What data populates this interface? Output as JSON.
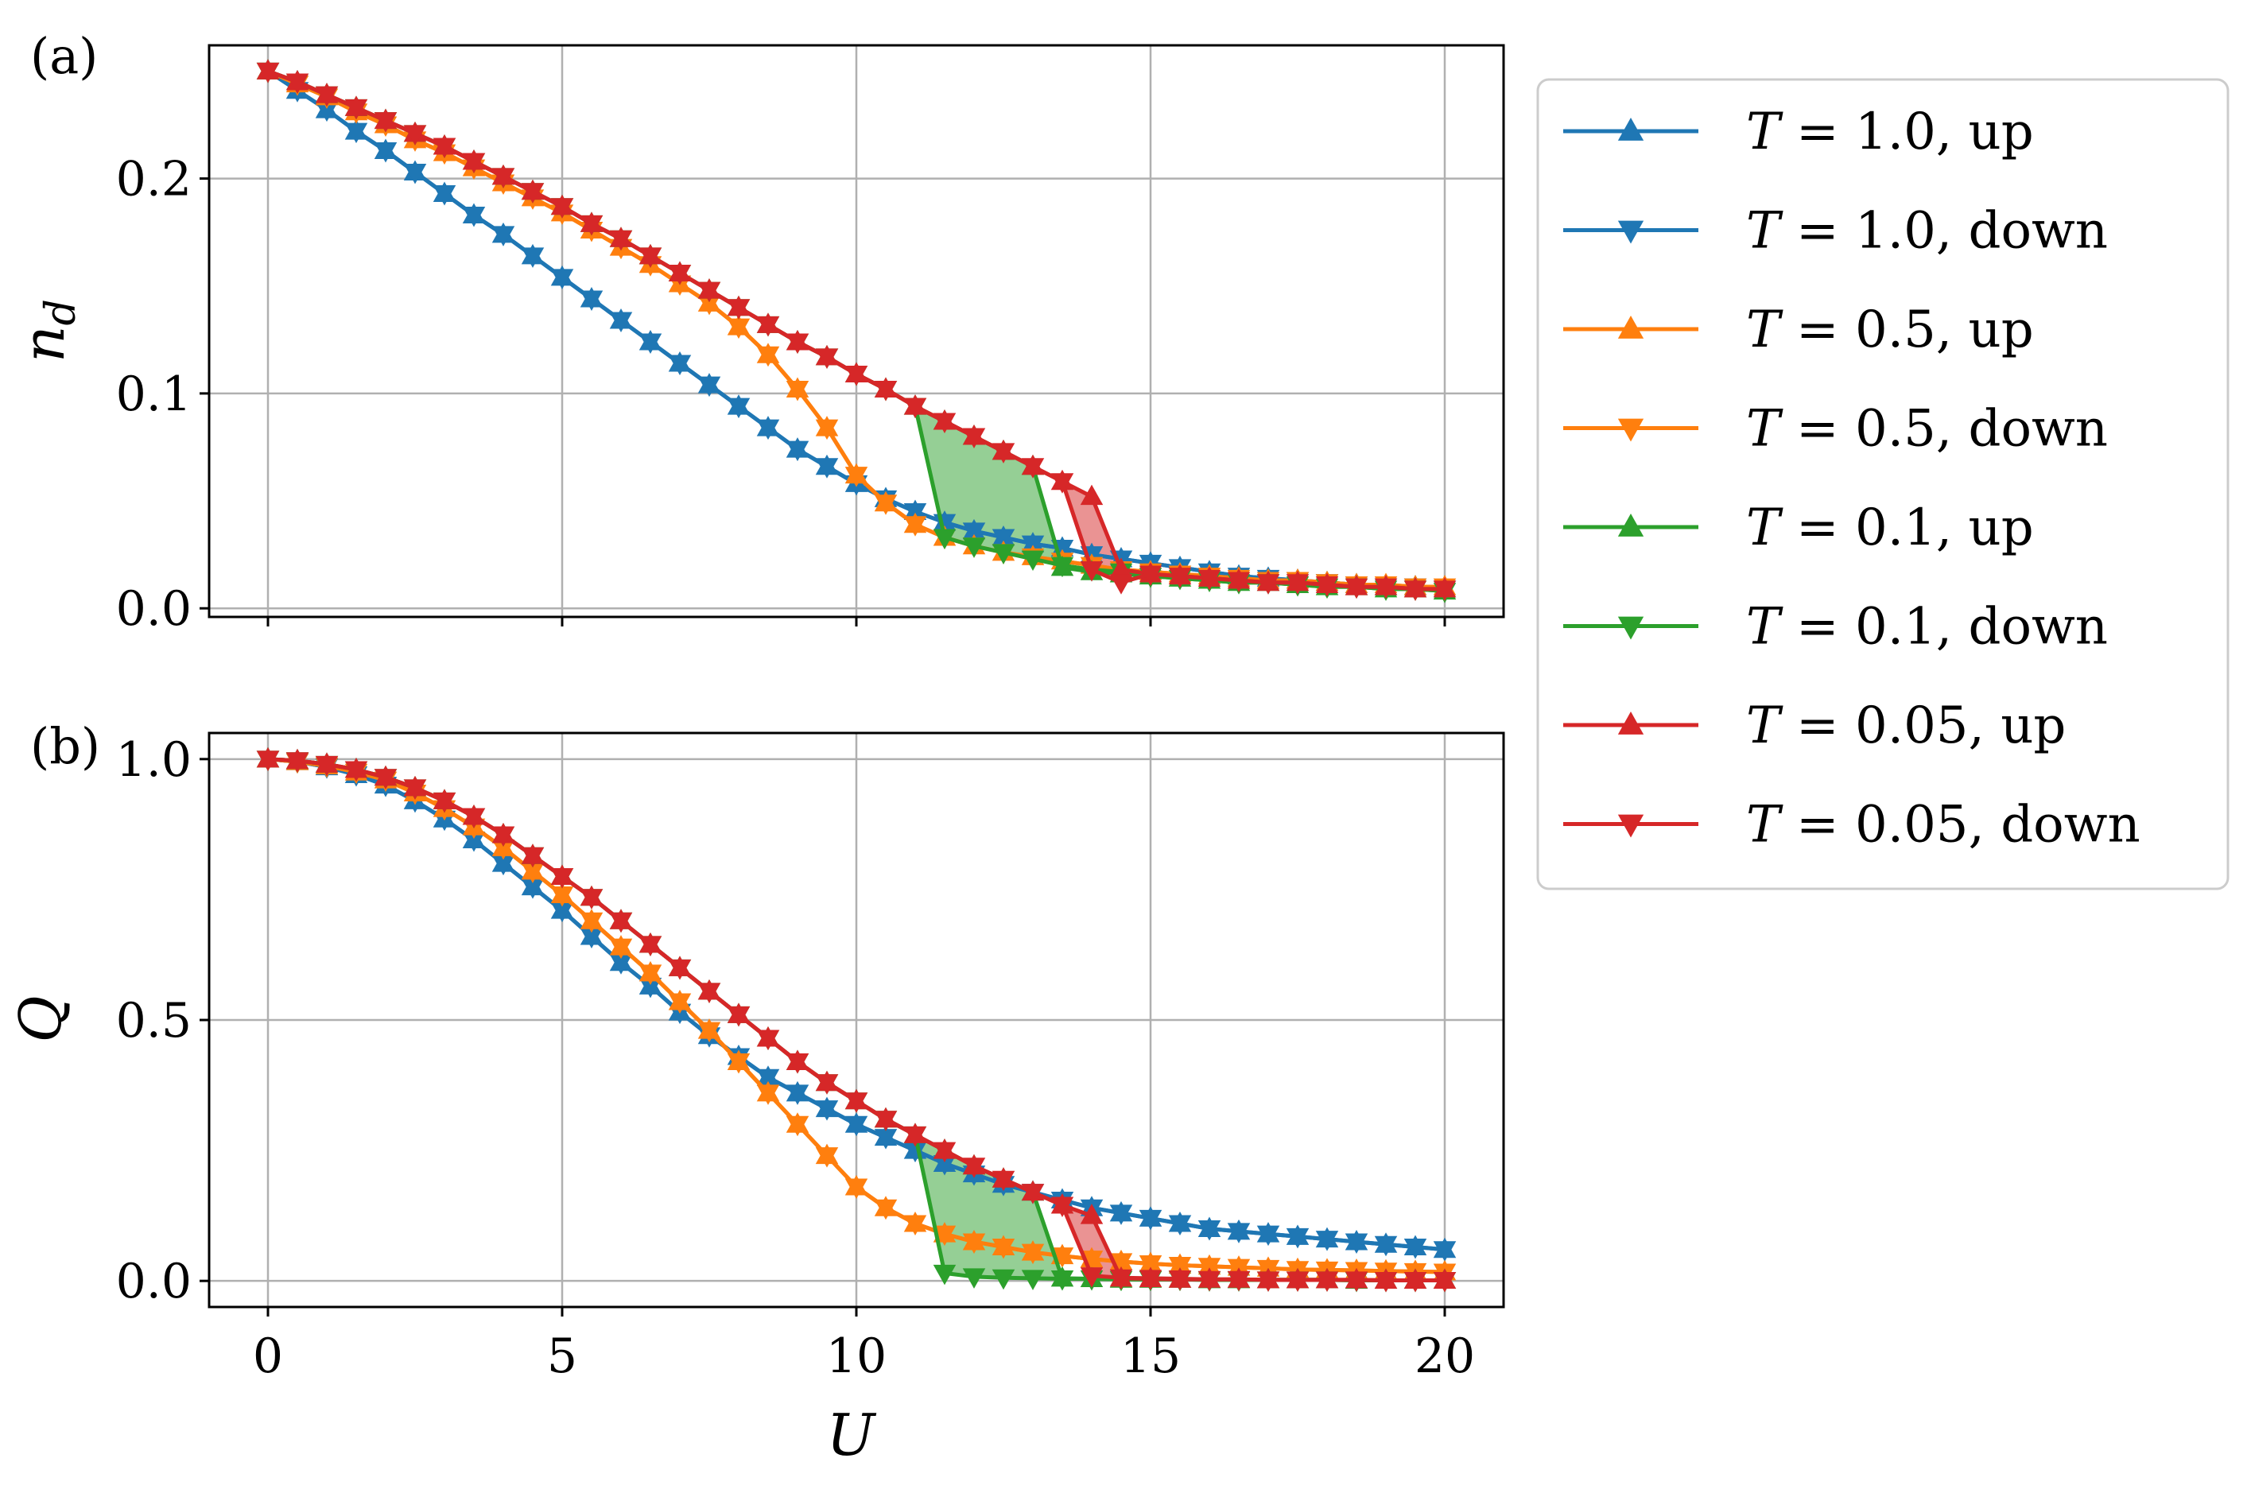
{
  "chart_data": [
    {
      "panel": "(a)",
      "type": "line",
      "xlabel": "",
      "ylabel": "n_d",
      "ylabel_base": "n",
      "ylabel_sub": "d",
      "xlim": [
        -1,
        21
      ],
      "ylim": [
        -0.004,
        0.262
      ],
      "x_ticks": [
        "0",
        "5",
        "10",
        "15",
        "20"
      ],
      "show_x_tick_labels": false,
      "y_ticks": [
        {
          "value": 0.0,
          "label": "0.0"
        },
        {
          "value": 0.1,
          "label": "0.1"
        },
        {
          "value": 0.2,
          "label": "0.2"
        }
      ],
      "grid": true,
      "x": [
        0,
        0.5,
        1,
        1.5,
        2,
        2.5,
        3,
        3.5,
        4,
        4.5,
        5,
        5.5,
        6,
        6.5,
        7,
        7.5,
        8,
        8.5,
        9,
        9.5,
        10,
        10.5,
        11,
        11.5,
        12,
        12.5,
        13,
        13.5,
        14,
        14.5,
        15,
        15.5,
        16,
        16.5,
        17,
        17.5,
        18,
        18.5,
        19,
        19.5,
        20
      ],
      "series": [
        {
          "name": "T = 1.0, up",
          "color": "#1f77b4",
          "marker": "triangle-up",
          "values": [
            0.25,
            0.241,
            0.232,
            0.222,
            0.213,
            0.203,
            0.193,
            0.183,
            0.174,
            0.164,
            0.154,
            0.144,
            0.134,
            0.124,
            0.114,
            0.104,
            0.094,
            0.084,
            0.074,
            0.066,
            0.058,
            0.051,
            0.045,
            0.04,
            0.036,
            0.033,
            0.03,
            0.028,
            0.025,
            0.023,
            0.021,
            0.019,
            0.017,
            0.015,
            0.014,
            0.013,
            0.012,
            0.011,
            0.01,
            0.01,
            0.009
          ]
        },
        {
          "name": "T = 1.0, down",
          "color": "#1f77b4",
          "marker": "triangle-down",
          "values": [
            0.25,
            0.241,
            0.232,
            0.222,
            0.213,
            0.203,
            0.193,
            0.183,
            0.174,
            0.164,
            0.154,
            0.144,
            0.134,
            0.124,
            0.114,
            0.104,
            0.094,
            0.084,
            0.074,
            0.066,
            0.058,
            0.051,
            0.045,
            0.04,
            0.036,
            0.033,
            0.03,
            0.028,
            0.025,
            0.023,
            0.021,
            0.019,
            0.017,
            0.015,
            0.014,
            0.013,
            0.012,
            0.011,
            0.01,
            0.01,
            0.009
          ]
        },
        {
          "name": "T = 0.5, up",
          "color": "#ff7f0e",
          "marker": "triangle-up",
          "values": [
            0.25,
            0.244,
            0.238,
            0.231,
            0.225,
            0.218,
            0.212,
            0.205,
            0.198,
            0.191,
            0.184,
            0.176,
            0.168,
            0.16,
            0.151,
            0.142,
            0.131,
            0.118,
            0.102,
            0.084,
            0.062,
            0.049,
            0.039,
            0.033,
            0.029,
            0.026,
            0.024,
            0.022,
            0.02,
            0.018,
            0.017,
            0.016,
            0.015,
            0.014,
            0.013,
            0.013,
            0.012,
            0.011,
            0.011,
            0.01,
            0.01
          ]
        },
        {
          "name": "T = 0.5, down",
          "color": "#ff7f0e",
          "marker": "triangle-down",
          "values": [
            0.25,
            0.244,
            0.238,
            0.231,
            0.225,
            0.218,
            0.212,
            0.205,
            0.198,
            0.191,
            0.184,
            0.176,
            0.168,
            0.16,
            0.151,
            0.142,
            0.131,
            0.118,
            0.102,
            0.084,
            0.062,
            0.049,
            0.039,
            0.033,
            0.029,
            0.026,
            0.024,
            0.022,
            0.02,
            0.018,
            0.017,
            0.016,
            0.015,
            0.014,
            0.013,
            0.013,
            0.012,
            0.011,
            0.011,
            0.01,
            0.01
          ]
        },
        {
          "name": "T = 0.1, up",
          "color": "#2ca02c",
          "marker": "triangle-up",
          "values": [
            0.25,
            0.245,
            0.239,
            0.233,
            0.227,
            0.221,
            0.215,
            0.208,
            0.201,
            0.194,
            0.187,
            0.179,
            0.172,
            0.164,
            0.156,
            0.148,
            0.14,
            0.132,
            0.124,
            0.117,
            0.109,
            0.102,
            0.094,
            0.087,
            0.08,
            0.073,
            0.066,
            0.019,
            0.017,
            0.016,
            0.015,
            0.014,
            0.013,
            0.012,
            0.012,
            0.011,
            0.01,
            0.01,
            0.009,
            0.009,
            0.008
          ]
        },
        {
          "name": "T = 0.1, down",
          "color": "#2ca02c",
          "marker": "triangle-down",
          "values": [
            0.25,
            0.245,
            0.239,
            0.233,
            0.227,
            0.221,
            0.215,
            0.208,
            0.201,
            0.194,
            0.187,
            0.179,
            0.172,
            0.164,
            0.156,
            0.148,
            0.14,
            0.132,
            0.124,
            0.117,
            0.109,
            0.102,
            0.094,
            0.033,
            0.029,
            0.026,
            0.023,
            0.02,
            0.018,
            0.017,
            0.015,
            0.014,
            0.013,
            0.012,
            0.012,
            0.011,
            0.01,
            0.01,
            0.009,
            0.009,
            0.008
          ]
        },
        {
          "name": "T = 0.05, up",
          "color": "#d62728",
          "marker": "triangle-up",
          "values": [
            0.25,
            0.245,
            0.239,
            0.233,
            0.227,
            0.221,
            0.215,
            0.208,
            0.201,
            0.194,
            0.187,
            0.179,
            0.172,
            0.164,
            0.156,
            0.148,
            0.14,
            0.132,
            0.124,
            0.117,
            0.109,
            0.102,
            0.094,
            0.087,
            0.08,
            0.073,
            0.066,
            0.059,
            0.052,
            0.018,
            0.016,
            0.015,
            0.014,
            0.013,
            0.012,
            0.012,
            0.011,
            0.01,
            0.01,
            0.009,
            0.009
          ]
        },
        {
          "name": "T = 0.05, down",
          "color": "#d62728",
          "marker": "triangle-down",
          "values": [
            0.25,
            0.245,
            0.239,
            0.233,
            0.227,
            0.221,
            0.215,
            0.208,
            0.201,
            0.194,
            0.187,
            0.179,
            0.172,
            0.164,
            0.156,
            0.148,
            0.14,
            0.132,
            0.124,
            0.117,
            0.109,
            0.102,
            0.094,
            0.087,
            0.08,
            0.073,
            0.066,
            0.059,
            0.018,
            0.012,
            0.016,
            0.015,
            0.014,
            0.013,
            0.012,
            0.012,
            0.011,
            0.01,
            0.01,
            0.009,
            0.009
          ]
        }
      ],
      "fills": [
        {
          "color": "#2ca02c",
          "between": [
            "T = 0.1, up",
            "T = 0.1, down"
          ],
          "x_range": [
            11,
            13.5
          ]
        },
        {
          "color": "#d62728",
          "between": [
            "T = 0.05, up",
            "T = 0.05, down"
          ],
          "x_range": [
            13.5,
            14.5
          ]
        }
      ]
    },
    {
      "panel": "(b)",
      "type": "line",
      "xlabel": "U",
      "ylabel": "Q",
      "xlim": [
        -1,
        21
      ],
      "ylim": [
        -0.05,
        1.05
      ],
      "x_ticks": [
        "0",
        "5",
        "10",
        "15",
        "20"
      ],
      "show_x_tick_labels": true,
      "y_ticks": [
        {
          "value": 0.0,
          "label": "0.0"
        },
        {
          "value": 0.5,
          "label": "0.5"
        },
        {
          "value": 1.0,
          "label": "1.0"
        }
      ],
      "grid": true,
      "x": [
        0,
        0.5,
        1,
        1.5,
        2,
        2.5,
        3,
        3.5,
        4,
        4.5,
        5,
        5.5,
        6,
        6.5,
        7,
        7.5,
        8,
        8.5,
        9,
        9.5,
        10,
        10.5,
        11,
        11.5,
        12,
        12.5,
        13,
        13.5,
        14,
        14.5,
        15,
        15.5,
        16,
        16.5,
        17,
        17.5,
        18,
        18.5,
        19,
        19.5,
        20
      ],
      "series": [
        {
          "name": "T = 1.0, up",
          "color": "#1f77b4",
          "marker": "triangle-up",
          "values": [
            1.0,
            0.995,
            0.985,
            0.97,
            0.95,
            0.92,
            0.885,
            0.845,
            0.8,
            0.755,
            0.71,
            0.66,
            0.61,
            0.565,
            0.515,
            0.47,
            0.43,
            0.39,
            0.36,
            0.33,
            0.3,
            0.275,
            0.25,
            0.225,
            0.205,
            0.185,
            0.17,
            0.155,
            0.14,
            0.13,
            0.12,
            0.11,
            0.1,
            0.095,
            0.09,
            0.085,
            0.08,
            0.075,
            0.07,
            0.065,
            0.06
          ]
        },
        {
          "name": "T = 1.0, down",
          "color": "#1f77b4",
          "marker": "triangle-down",
          "values": [
            1.0,
            0.995,
            0.985,
            0.97,
            0.95,
            0.92,
            0.885,
            0.845,
            0.8,
            0.755,
            0.71,
            0.66,
            0.61,
            0.565,
            0.515,
            0.47,
            0.43,
            0.39,
            0.36,
            0.33,
            0.3,
            0.275,
            0.25,
            0.225,
            0.205,
            0.185,
            0.17,
            0.155,
            0.14,
            0.13,
            0.12,
            0.11,
            0.1,
            0.095,
            0.09,
            0.085,
            0.08,
            0.075,
            0.07,
            0.065,
            0.06
          ]
        },
        {
          "name": "T = 0.5, up",
          "color": "#ff7f0e",
          "marker": "triangle-up",
          "values": [
            1.0,
            0.995,
            0.987,
            0.975,
            0.96,
            0.935,
            0.905,
            0.87,
            0.83,
            0.785,
            0.74,
            0.69,
            0.64,
            0.59,
            0.535,
            0.48,
            0.42,
            0.36,
            0.3,
            0.24,
            0.18,
            0.14,
            0.11,
            0.09,
            0.075,
            0.065,
            0.055,
            0.048,
            0.042,
            0.037,
            0.033,
            0.03,
            0.028,
            0.026,
            0.024,
            0.022,
            0.021,
            0.02,
            0.019,
            0.018,
            0.017
          ]
        },
        {
          "name": "T = 0.5, down",
          "color": "#ff7f0e",
          "marker": "triangle-down",
          "values": [
            1.0,
            0.995,
            0.987,
            0.975,
            0.96,
            0.935,
            0.905,
            0.87,
            0.83,
            0.785,
            0.74,
            0.69,
            0.64,
            0.59,
            0.535,
            0.48,
            0.42,
            0.36,
            0.3,
            0.24,
            0.18,
            0.14,
            0.11,
            0.09,
            0.075,
            0.065,
            0.055,
            0.048,
            0.042,
            0.037,
            0.033,
            0.03,
            0.028,
            0.026,
            0.024,
            0.022,
            0.021,
            0.02,
            0.019,
            0.018,
            0.017
          ]
        },
        {
          "name": "T = 0.1, up",
          "color": "#2ca02c",
          "marker": "triangle-up",
          "values": [
            1.0,
            0.997,
            0.99,
            0.98,
            0.965,
            0.945,
            0.92,
            0.89,
            0.855,
            0.815,
            0.775,
            0.735,
            0.69,
            0.645,
            0.6,
            0.555,
            0.51,
            0.465,
            0.42,
            0.38,
            0.345,
            0.31,
            0.28,
            0.25,
            0.22,
            0.195,
            0.17,
            0.005,
            0.004,
            0.003,
            0.003,
            0.003,
            0.002,
            0.002,
            0.002,
            0.002,
            0.002,
            0.001,
            0.001,
            0.001,
            0.001
          ]
        },
        {
          "name": "T = 0.1, down",
          "color": "#2ca02c",
          "marker": "triangle-down",
          "values": [
            1.0,
            0.997,
            0.99,
            0.98,
            0.965,
            0.945,
            0.92,
            0.89,
            0.855,
            0.815,
            0.775,
            0.735,
            0.69,
            0.645,
            0.6,
            0.555,
            0.51,
            0.465,
            0.42,
            0.38,
            0.345,
            0.31,
            0.28,
            0.015,
            0.008,
            0.006,
            0.005,
            0.004,
            0.004,
            0.003,
            0.003,
            0.003,
            0.002,
            0.002,
            0.002,
            0.002,
            0.002,
            0.001,
            0.001,
            0.001,
            0.001
          ]
        },
        {
          "name": "T = 0.05, up",
          "color": "#d62728",
          "marker": "triangle-up",
          "values": [
            1.0,
            0.997,
            0.99,
            0.98,
            0.965,
            0.945,
            0.92,
            0.89,
            0.855,
            0.815,
            0.775,
            0.735,
            0.69,
            0.645,
            0.6,
            0.555,
            0.51,
            0.465,
            0.42,
            0.38,
            0.345,
            0.31,
            0.28,
            0.25,
            0.22,
            0.195,
            0.17,
            0.145,
            0.125,
            0.005,
            0.004,
            0.003,
            0.003,
            0.003,
            0.002,
            0.002,
            0.002,
            0.002,
            0.001,
            0.001,
            0.001
          ]
        },
        {
          "name": "T = 0.05, down",
          "color": "#d62728",
          "marker": "triangle-down",
          "values": [
            1.0,
            0.997,
            0.99,
            0.98,
            0.965,
            0.945,
            0.92,
            0.89,
            0.855,
            0.815,
            0.775,
            0.735,
            0.69,
            0.645,
            0.6,
            0.555,
            0.51,
            0.465,
            0.42,
            0.38,
            0.345,
            0.31,
            0.28,
            0.25,
            0.22,
            0.195,
            0.17,
            0.145,
            0.01,
            0.006,
            0.005,
            0.004,
            0.003,
            0.003,
            0.002,
            0.002,
            0.002,
            0.002,
            0.001,
            0.001,
            0.001
          ]
        }
      ],
      "fills": [
        {
          "color": "#2ca02c",
          "between": [
            "T = 0.1, up",
            "T = 0.1, down"
          ],
          "x_range": [
            11,
            13.5
          ]
        },
        {
          "color": "#d62728",
          "between": [
            "T = 0.05, up",
            "T = 0.05, down"
          ],
          "x_range": [
            13.5,
            14.5
          ]
        }
      ]
    }
  ],
  "legend": {
    "placement": "outside-right",
    "entries": [
      {
        "var": "T",
        "rest": " = 1.0, up",
        "color": "#1f77b4",
        "marker": "triangle-up"
      },
      {
        "var": "T",
        "rest": " = 1.0, down",
        "color": "#1f77b4",
        "marker": "triangle-down"
      },
      {
        "var": "T",
        "rest": " = 0.5, up",
        "color": "#ff7f0e",
        "marker": "triangle-up"
      },
      {
        "var": "T",
        "rest": " = 0.5, down",
        "color": "#ff7f0e",
        "marker": "triangle-down"
      },
      {
        "var": "T",
        "rest": " = 0.1, up",
        "color": "#2ca02c",
        "marker": "triangle-up"
      },
      {
        "var": "T",
        "rest": " = 0.1, down",
        "color": "#2ca02c",
        "marker": "triangle-down"
      },
      {
        "var": "T",
        "rest": " = 0.05, up",
        "color": "#d62728",
        "marker": "triangle-up"
      },
      {
        "var": "T",
        "rest": " = 0.05, down",
        "color": "#d62728",
        "marker": "triangle-down"
      }
    ]
  }
}
